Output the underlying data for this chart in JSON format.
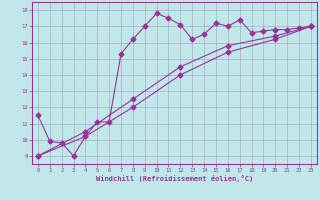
{
  "xlabel": "Windchill (Refroidissement éolien,°C)",
  "bg_color": "#c0e8e8",
  "grid_color": "#aaaacc",
  "line_color": "#993399",
  "ylim": [
    8.5,
    18.5
  ],
  "xlim": [
    -0.5,
    23.5
  ],
  "yticks": [
    9,
    10,
    11,
    12,
    13,
    14,
    15,
    16,
    17,
    18
  ],
  "xticks": [
    0,
    1,
    2,
    3,
    4,
    5,
    6,
    7,
    8,
    9,
    10,
    11,
    12,
    13,
    14,
    15,
    16,
    17,
    18,
    19,
    20,
    21,
    22,
    23
  ],
  "line1_x": [
    0,
    1,
    2,
    3,
    4,
    5,
    6,
    7,
    8,
    9,
    10,
    11,
    12,
    13,
    14,
    15,
    16,
    17,
    18,
    19,
    20,
    21,
    22,
    23
  ],
  "line1_y": [
    11.5,
    9.9,
    9.8,
    9.0,
    10.2,
    11.1,
    11.1,
    15.3,
    16.2,
    17.0,
    17.8,
    17.5,
    17.1,
    16.2,
    16.5,
    17.2,
    17.0,
    17.4,
    16.6,
    16.7,
    16.8,
    16.8,
    16.9,
    17.0
  ],
  "line2_x": [
    0,
    23
  ],
  "line2_y": [
    9.0,
    17.0
  ],
  "line3_x": [
    0,
    23
  ],
  "line3_y": [
    9.0,
    17.0
  ],
  "line2_ctrl_x": [
    0,
    4,
    8,
    12,
    16,
    20,
    23
  ],
  "line2_ctrl_y": [
    9.0,
    10.5,
    12.5,
    14.5,
    15.8,
    16.4,
    17.0
  ],
  "line3_ctrl_x": [
    0,
    4,
    8,
    12,
    16,
    20,
    23
  ],
  "line3_ctrl_y": [
    9.0,
    10.2,
    12.0,
    14.0,
    15.4,
    16.2,
    17.0
  ]
}
